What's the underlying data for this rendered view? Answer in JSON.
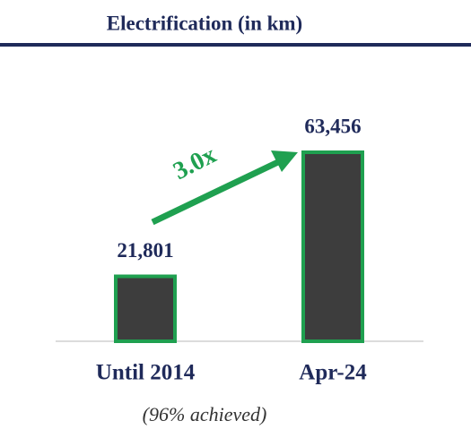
{
  "chart_data": {
    "type": "bar",
    "title": "Electrification (in km)",
    "categories": [
      "Until 2014",
      "Apr-24"
    ],
    "values": [
      21801,
      63456
    ],
    "value_labels": [
      "21,801",
      "63,456"
    ],
    "color": "#3d3d3d",
    "edge_color": "#1fa050",
    "annotation": "3.0x",
    "note": "(96% achieved)"
  }
}
